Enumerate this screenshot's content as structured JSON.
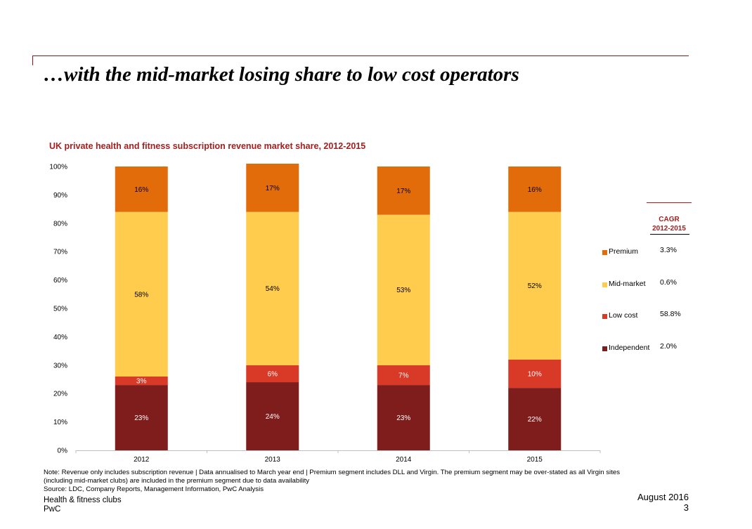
{
  "slide": {
    "title": "…with the mid-market losing share to low cost operators",
    "note_line1": "Note: Revenue only includes subscription revenue | Data annualised to March year end | Premium segment includes DLL and Virgin. The premium segment may be over-stated as all Virgin sites",
    "note_line2": "(including mid-market clubs) are included in the premium segment due to data availability",
    "source": "Source: LDC, Company Reports, Management Information, PwC Analysis",
    "footer_left_1": "Health & fitness clubs",
    "footer_left_2": "PwC",
    "footer_date": "August 2016",
    "footer_page": "3"
  },
  "legend": {
    "cagr_header_1": "CAGR",
    "cagr_header_2": "2012-2015",
    "items": [
      {
        "label": "Premium",
        "cagr": "3.3%",
        "color": "#e36c0a"
      },
      {
        "label": "Mid-market",
        "cagr": "0.6%",
        "color": "#ffcc4d"
      },
      {
        "label": "Low cost",
        "cagr": "58.8%",
        "color": "#d93a28"
      },
      {
        "label": "Independent",
        "cagr": "2.0%",
        "color": "#7f1d1d"
      }
    ]
  },
  "chart_data": {
    "type": "bar",
    "stacked": true,
    "title": "UK private health and fitness subscription revenue market share, 2012-2015",
    "categories": [
      "2012",
      "2013",
      "2014",
      "2015"
    ],
    "ylim": [
      0,
      100
    ],
    "yticks": [
      "0%",
      "10%",
      "20%",
      "30%",
      "40%",
      "50%",
      "60%",
      "70%",
      "80%",
      "90%",
      "100%"
    ],
    "series": [
      {
        "name": "Independent",
        "color": "#7f1d1d",
        "label_color": "#ffffff",
        "values": [
          23,
          24,
          23,
          22
        ],
        "labels": [
          "23%",
          "24%",
          "23%",
          "22%"
        ]
      },
      {
        "name": "Low cost",
        "color": "#d93a28",
        "label_color": "#ffffff",
        "values": [
          3,
          6,
          7,
          10
        ],
        "labels": [
          "3%",
          "6%",
          "7%",
          "10%"
        ]
      },
      {
        "name": "Mid-market",
        "color": "#ffcc4d",
        "label_color": "#000000",
        "values": [
          58,
          54,
          53,
          52
        ],
        "labels": [
          "58%",
          "54%",
          "53%",
          "52%"
        ]
      },
      {
        "name": "Premium",
        "color": "#e36c0a",
        "label_color": "#000000",
        "values": [
          16,
          17,
          17,
          16
        ],
        "labels": [
          "16%",
          "17%",
          "17%",
          "16%"
        ]
      }
    ]
  }
}
